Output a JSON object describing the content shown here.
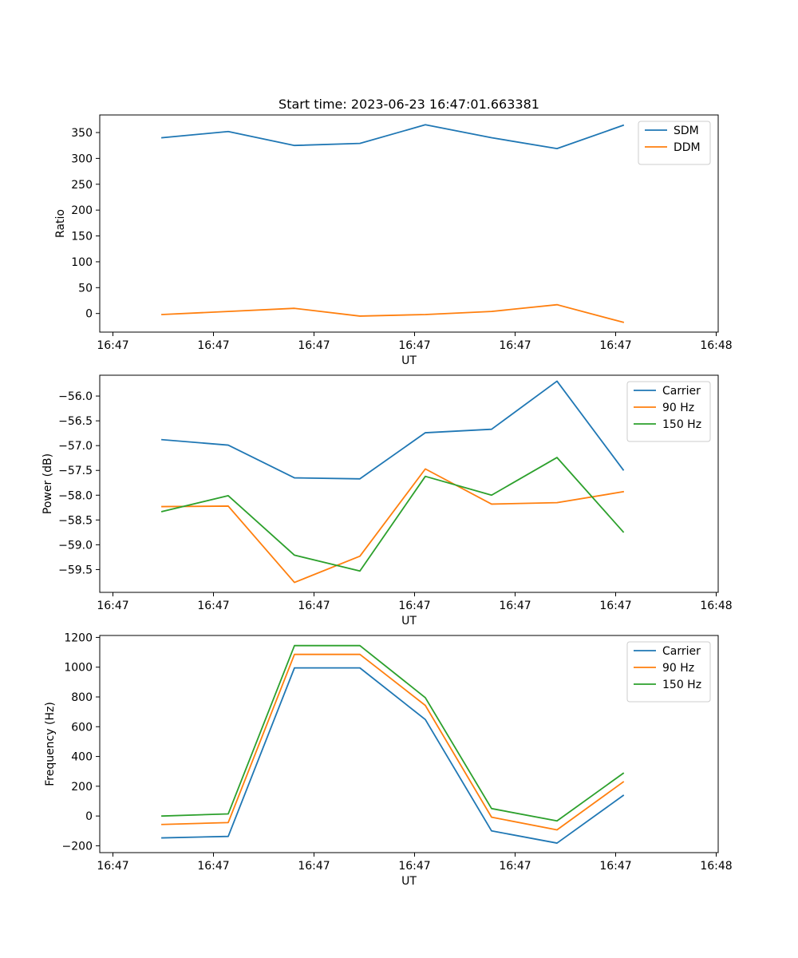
{
  "figure": {
    "title": "Start time: 2023-06-23 16:47:01.663381"
  },
  "chart_data": [
    {
      "type": "line",
      "title": "Start time: 2023-06-23 16:47:01.663381",
      "xlabel": "UT",
      "ylabel": "Ratio",
      "x_ticks": [
        "16:47",
        "16:47",
        "16:47",
        "16:47",
        "16:47",
        "16:47",
        "16:48"
      ],
      "y_ticks": [
        0,
        50,
        100,
        150,
        200,
        250,
        300,
        350
      ],
      "ylim": [
        -36,
        384
      ],
      "legend": "top-right",
      "series": [
        {
          "name": "SDM",
          "color": "#1f77b4",
          "values": [
            340,
            352,
            325,
            329,
            365,
            340,
            319,
            364
          ]
        },
        {
          "name": "DDM",
          "color": "#ff7f0e",
          "values": [
            -2,
            4,
            10,
            -5,
            -2,
            4,
            17,
            -17
          ]
        }
      ]
    },
    {
      "type": "line",
      "xlabel": "UT",
      "ylabel": "Power (dB)",
      "x_ticks": [
        "16:47",
        "16:47",
        "16:47",
        "16:47",
        "16:47",
        "16:47",
        "16:48"
      ],
      "y_ticks": [
        -56.0,
        -56.5,
        -57.0,
        -57.5,
        -58.0,
        -58.5,
        -59.0,
        -59.5
      ],
      "y_tick_labels": [
        "−56.0",
        "−56.5",
        "−57.0",
        "−57.5",
        "−58.0",
        "−58.5",
        "−59.0",
        "−59.5"
      ],
      "ylim": [
        -59.96,
        -55.58
      ],
      "legend": "top-right",
      "series": [
        {
          "name": "Carrier",
          "color": "#1f77b4",
          "values": [
            -56.88,
            -56.99,
            -57.65,
            -57.67,
            -56.74,
            -56.67,
            -55.7,
            -57.49
          ]
        },
        {
          "name": "90 Hz",
          "color": "#ff7f0e",
          "values": [
            -58.23,
            -58.22,
            -59.76,
            -59.23,
            -57.47,
            -58.18,
            -58.15,
            -57.93
          ]
        },
        {
          "name": "150 Hz",
          "color": "#2ca02c",
          "values": [
            -58.33,
            -58.01,
            -59.21,
            -59.53,
            -57.62,
            -58.0,
            -57.24,
            -58.74
          ]
        }
      ]
    },
    {
      "type": "line",
      "xlabel": "UT",
      "ylabel": "Frequency (Hz)",
      "x_ticks": [
        "16:47",
        "16:47",
        "16:47",
        "16:47",
        "16:47",
        "16:47",
        "16:48"
      ],
      "y_ticks": [
        -200,
        0,
        200,
        400,
        600,
        800,
        1000,
        1200
      ],
      "y_tick_labels": [
        "−200",
        "0",
        "200",
        "400",
        "600",
        "800",
        "1000",
        "1200"
      ],
      "ylim": [
        -246,
        1213
      ],
      "legend": "top-right",
      "series": [
        {
          "name": "Carrier",
          "color": "#1f77b4",
          "values": [
            -147,
            -137,
            995,
            995,
            648,
            -100,
            -182,
            138
          ]
        },
        {
          "name": "90 Hz",
          "color": "#ff7f0e",
          "values": [
            -57,
            -44,
            1086,
            1086,
            743,
            -8,
            -93,
            229
          ]
        },
        {
          "name": "150 Hz",
          "color": "#2ca02c",
          "values": [
            0,
            14,
            1145,
            1145,
            795,
            50,
            -33,
            287
          ]
        }
      ]
    }
  ]
}
